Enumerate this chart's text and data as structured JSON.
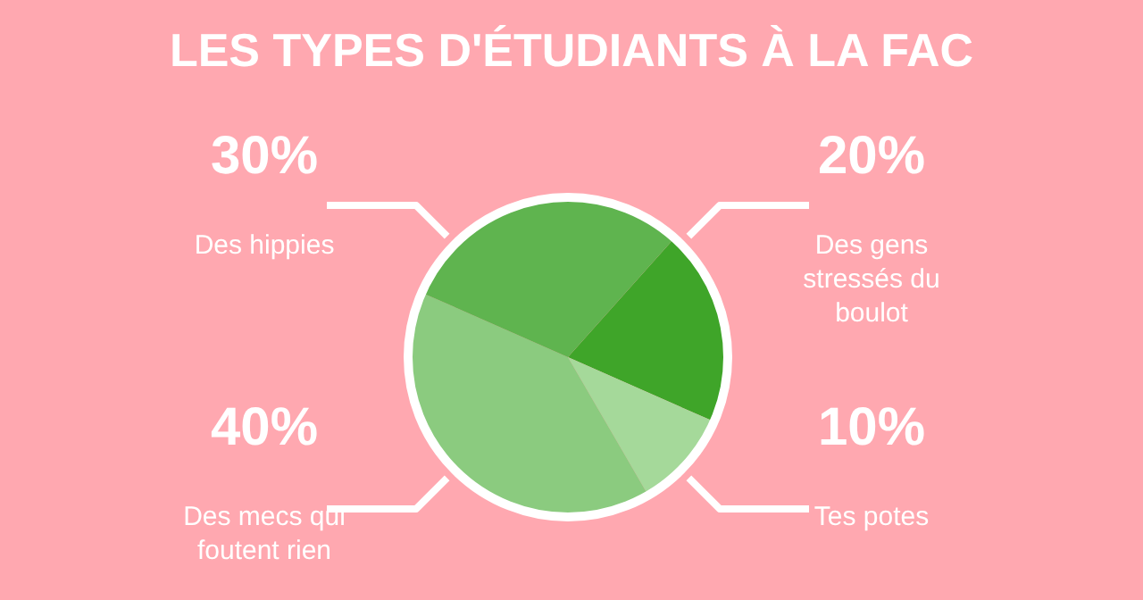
{
  "chart_data": {
    "type": "pie",
    "title": "LES TYPES D'ÉTUDIANTS À LA FAC",
    "categories": [
      "Des gens stressés du boulot",
      "Tes potes",
      "Des mecs qui foutent rien",
      "Des hippies"
    ],
    "values": [
      20,
      10,
      40,
      30
    ],
    "colors": [
      "#3fa529",
      "#a5d99a",
      "#8bcb7f",
      "#5fb44f"
    ],
    "value_labels": [
      "20%",
      "10%",
      "40%",
      "30%"
    ]
  }
}
